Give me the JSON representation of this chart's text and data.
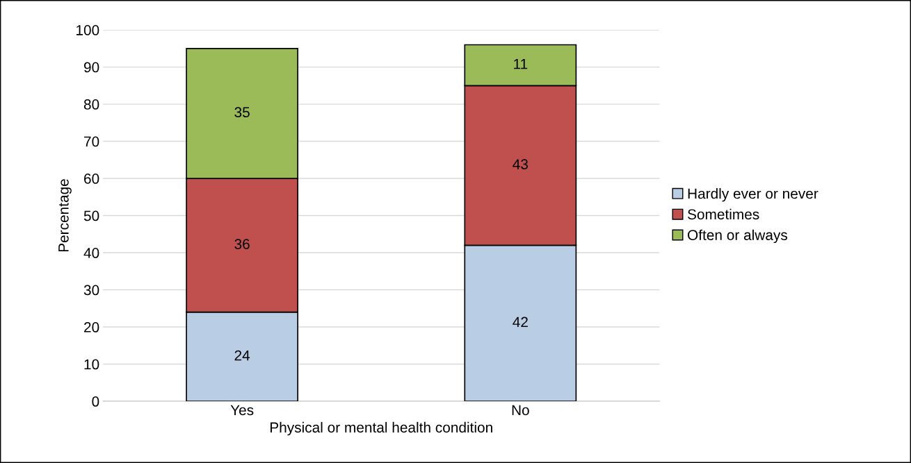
{
  "chart_data": {
    "type": "bar",
    "stacked": true,
    "xlabel": "Physical or mental health condition",
    "ylabel": "Percentage",
    "categories": [
      "Yes",
      "No"
    ],
    "series": [
      {
        "name": "Hardly ever or never",
        "color": "#b9cde5",
        "values": [
          24,
          42
        ]
      },
      {
        "name": "Sometimes",
        "color": "#c0504d",
        "values": [
          36,
          43
        ]
      },
      {
        "name": "Often or always",
        "color": "#9bbb59",
        "values": [
          35,
          11
        ]
      }
    ],
    "ylim": [
      0,
      100
    ],
    "yticks": [
      0,
      10,
      20,
      30,
      40,
      50,
      60,
      70,
      80,
      90,
      100
    ],
    "grid": "y",
    "legend": "right",
    "data_labels": true
  }
}
